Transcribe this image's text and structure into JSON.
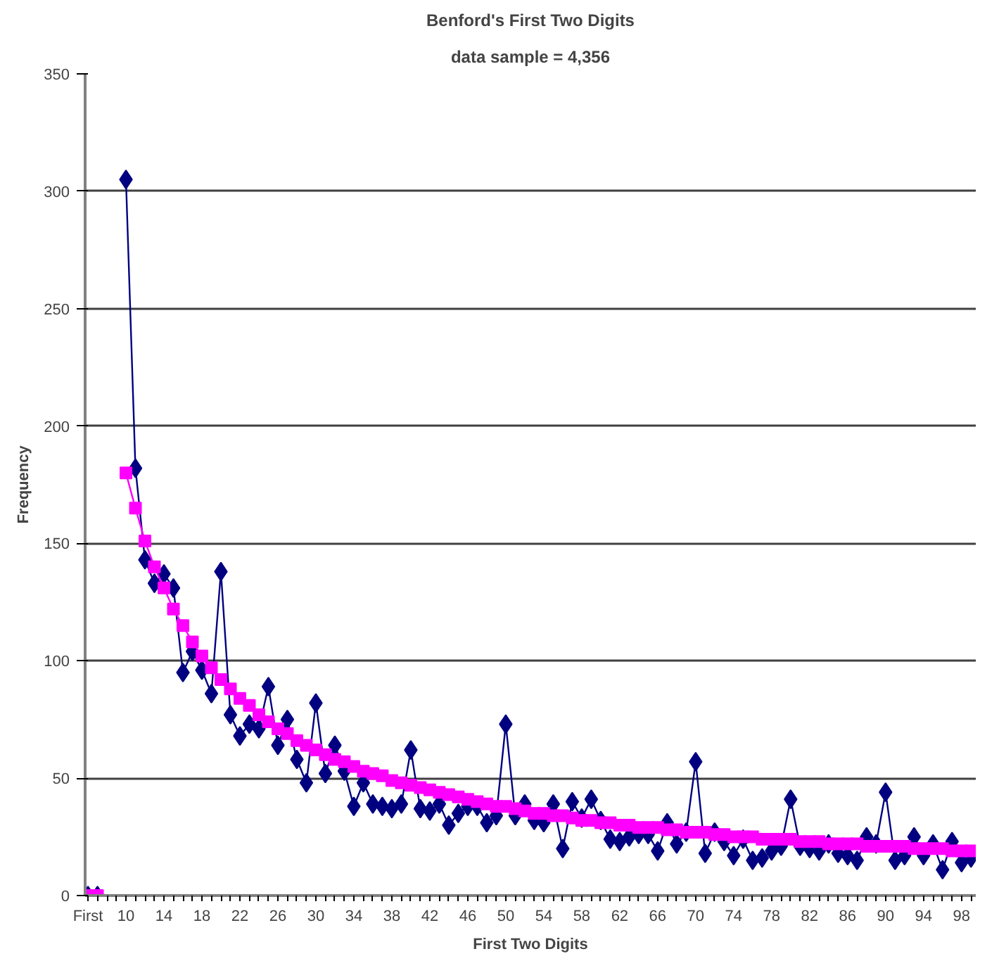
{
  "chart_data": {
    "type": "line",
    "title": "Benford's First Two Digits",
    "subtitle": "data sample = 4,356",
    "xlabel": "First Two Digits",
    "ylabel": "Frequency",
    "categories": [
      "First",
      null,
      null,
      null,
      "10",
      null,
      null,
      null,
      "14",
      null,
      null,
      null,
      "18",
      null,
      null,
      null,
      "22",
      null,
      null,
      null,
      "26",
      null,
      null,
      null,
      "30",
      null,
      null,
      null,
      "34",
      null,
      null,
      null,
      "38",
      null,
      null,
      null,
      "42",
      null,
      null,
      null,
      "46",
      null,
      null,
      null,
      "50",
      null,
      null,
      null,
      "54",
      null,
      null,
      null,
      "58",
      null,
      null,
      null,
      "62",
      null,
      null,
      null,
      "66",
      null,
      null,
      null,
      "70",
      null,
      null,
      null,
      "74",
      null,
      null,
      null,
      "78",
      null,
      null,
      null,
      "82",
      null,
      null,
      null,
      "86",
      null,
      null,
      null,
      "90",
      null,
      null,
      null,
      "94",
      null,
      null,
      null,
      "98",
      null
    ],
    "series": [
      {
        "color": "#000080",
        "marker": "diamond",
        "values": [
          0,
          0,
          null,
          null,
          305,
          182,
          143,
          133,
          137,
          131,
          95,
          104,
          96,
          86,
          138,
          77,
          68,
          73,
          71,
          89,
          64,
          75,
          58,
          48,
          82,
          52,
          64,
          53,
          38,
          48,
          39,
          38,
          37,
          39,
          62,
          37,
          36,
          39,
          30,
          35,
          38,
          38,
          31,
          34,
          73,
          34,
          39,
          32,
          31,
          39,
          20,
          40,
          33,
          41,
          32,
          24,
          23,
          25,
          26,
          26,
          19,
          31,
          22,
          27,
          57,
          18,
          27,
          23,
          17,
          24,
          15,
          16,
          19,
          21,
          41,
          21,
          20,
          19,
          22,
          18,
          17,
          15,
          25,
          22,
          44,
          15,
          17,
          25,
          17,
          22,
          11,
          23,
          14,
          16
        ]
      },
      {
        "color": "#ff00ff",
        "marker": "square",
        "values": [
          0,
          0,
          null,
          null,
          180,
          165,
          151,
          140,
          131,
          122,
          115,
          108,
          102,
          97,
          92,
          88,
          84,
          81,
          77,
          74,
          71,
          69,
          66,
          64,
          62,
          60,
          58,
          57,
          55,
          53,
          52,
          51,
          49,
          48,
          47,
          46,
          45,
          44,
          43,
          42,
          41,
          40,
          39,
          38,
          38,
          37,
          36,
          35,
          35,
          34,
          34,
          33,
          32,
          32,
          31,
          31,
          30,
          30,
          29,
          29,
          29,
          28,
          28,
          27,
          27,
          27,
          26,
          26,
          25,
          25,
          25,
          24,
          24,
          24,
          24,
          23,
          23,
          23,
          22,
          22,
          22,
          22,
          21,
          21,
          21,
          21,
          21,
          20,
          20,
          20,
          20,
          19,
          19,
          19
        ]
      }
    ],
    "ylim": [
      0,
      350
    ],
    "yticks": [
      0,
      50,
      100,
      150,
      200,
      250,
      300,
      350
    ],
    "grid": "y"
  }
}
